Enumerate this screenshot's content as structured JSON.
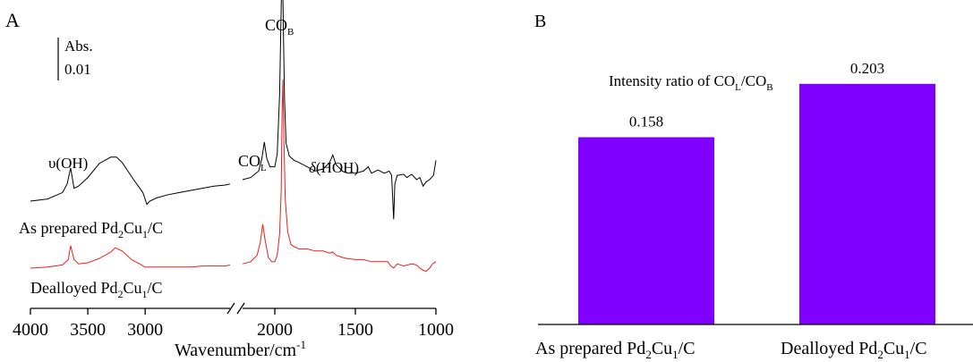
{
  "panelA": {
    "panel_label": "A",
    "scale_bar": {
      "label_line1": "Abs.",
      "label_line2": "0.01"
    },
    "xlabel_main": "Wavenumber/cm",
    "xlabel_sup": "-1",
    "annotations": {
      "co_b_main": "CO",
      "co_b_sub": "B",
      "co_l_main": "CO",
      "co_l_sub": "L",
      "v_oh": "υ(OH)",
      "delta_sym": "δ",
      "delta_rest": "(HOH)"
    },
    "trace_labels": {
      "as_prepared": {
        "a": "As prepared Pd",
        "s1": "2",
        "b": "Cu",
        "s2": "1",
        "c": "/C"
      },
      "dealloyed": {
        "a": "Dealloyed Pd",
        "s1": "2",
        "b": "Cu",
        "s2": "1",
        "c": "/C"
      }
    },
    "colors": {
      "as_prepared": "#000000",
      "dealloyed": "#e8201a"
    }
  },
  "panelB": {
    "panel_label": "B",
    "title": {
      "a": "Intensity ratio of CO",
      "s1": "L",
      "b": "/CO",
      "s2": "B"
    },
    "bar_color": "#8000ff"
  },
  "chart_data": [
    {
      "type": "line",
      "xlabel": "Wavenumber/cm-1",
      "xlim": [
        4000,
        1000
      ],
      "axis_break": [
        2260,
        2200
      ],
      "x_ticks": [
        4000,
        3500,
        3000,
        2000,
        1500,
        1000
      ],
      "x_tick_labels": [
        "4000",
        "3500",
        "3000",
        "2000",
        "1500",
        "1000"
      ],
      "series": [
        {
          "name": "As prepared Pd2Cu1/C",
          "segments": [
            [
              [
                4000,
                0.0
              ],
              [
                3850,
                0.001
              ],
              [
                3720,
                0.004
              ],
              [
                3680,
                0.008
              ],
              [
                3650,
                0.0155
              ],
              [
                3620,
                0.006
              ],
              [
                3580,
                0.007
              ],
              [
                3500,
                0.011
              ],
              [
                3400,
                0.0175
              ],
              [
                3300,
                0.0205
              ],
              [
                3250,
                0.0205
              ],
              [
                3200,
                0.018
              ],
              [
                3100,
                0.01
              ],
              [
                3020,
                0.004
              ],
              [
                2985,
                -0.0015
              ],
              [
                2960,
                0.0
              ],
              [
                2900,
                0.0015
              ],
              [
                2800,
                0.003
              ],
              [
                2700,
                0.004
              ],
              [
                2600,
                0.005
              ],
              [
                2500,
                0.006
              ],
              [
                2400,
                0.007
              ],
              [
                2300,
                0.0075
              ],
              [
                2260,
                0.008
              ]
            ],
            [
              [
                2200,
                0.01
              ],
              [
                2150,
                0.011
              ],
              [
                2100,
                0.014
              ],
              [
                2080,
                0.02
              ],
              [
                2065,
                0.0275
              ],
              [
                2050,
                0.02
              ],
              [
                2030,
                0.016
              ],
              [
                2000,
                0.016
              ],
              [
                1985,
                0.022
              ],
              [
                1970,
                0.05
              ],
              [
                1960,
                0.092
              ],
              [
                1955,
                0.106
              ],
              [
                1950,
                0.096
              ],
              [
                1940,
                0.048
              ],
              [
                1930,
                0.027
              ],
              [
                1910,
                0.021
              ],
              [
                1880,
                0.019
              ],
              [
                1850,
                0.018
              ],
              [
                1800,
                0.016
              ],
              [
                1750,
                0.014
              ],
              [
                1700,
                0.015
              ],
              [
                1660,
                0.018
              ],
              [
                1640,
                0.0215
              ],
              [
                1620,
                0.017
              ],
              [
                1580,
                0.014
              ],
              [
                1550,
                0.013
              ],
              [
                1500,
                0.013
              ],
              [
                1450,
                0.014
              ],
              [
                1420,
                0.016
              ],
              [
                1400,
                0.013
              ],
              [
                1360,
                0.0145
              ],
              [
                1320,
                0.013
              ],
              [
                1290,
                0.014
              ],
              [
                1275,
                0.012
              ],
              [
                1262,
                -0.0085
              ],
              [
                1255,
                0.008
              ],
              [
                1240,
                0.012
              ],
              [
                1200,
                0.0125
              ],
              [
                1180,
                0.011
              ],
              [
                1150,
                0.0125
              ],
              [
                1120,
                0.01
              ],
              [
                1100,
                0.011
              ],
              [
                1080,
                0.007
              ],
              [
                1060,
                0.009
              ],
              [
                1040,
                0.01
              ],
              [
                1015,
                0.012
              ],
              [
                1000,
                0.019
              ]
            ]
          ]
        },
        {
          "name": "Dealloyed Pd2Cu1/C",
          "segments": [
            [
              [
                4000,
                0.0
              ],
              [
                3850,
                0.0005
              ],
              [
                3720,
                0.0015
              ],
              [
                3670,
                0.004
              ],
              [
                3650,
                0.0105
              ],
              [
                3620,
                0.004
              ],
              [
                3580,
                0.002
              ],
              [
                3500,
                0.0025
              ],
              [
                3400,
                0.0045
              ],
              [
                3300,
                0.0075
              ],
              [
                3260,
                0.0095
              ],
              [
                3200,
                0.008
              ],
              [
                3120,
                0.004
              ],
              [
                3050,
                0.002
              ],
              [
                3000,
                0.0005
              ],
              [
                2900,
                0.0005
              ],
              [
                2800,
                0.0005
              ],
              [
                2700,
                0.0005
              ],
              [
                2600,
                0.0005
              ],
              [
                2500,
                0.001
              ],
              [
                2400,
                0.001
              ],
              [
                2300,
                0.001
              ],
              [
                2260,
                0.0015
              ]
            ],
            [
              [
                2200,
                0.002
              ],
              [
                2150,
                0.003
              ],
              [
                2110,
                0.006
              ],
              [
                2090,
                0.012
              ],
              [
                2075,
                0.0205
              ],
              [
                2060,
                0.013
              ],
              [
                2040,
                0.005
              ],
              [
                2020,
                0.003
              ],
              [
                2000,
                0.003
              ],
              [
                1985,
                0.006
              ],
              [
                1970,
                0.016
              ],
              [
                1960,
                0.037
              ],
              [
                1955,
                0.072
              ],
              [
                1950,
                0.088
              ],
              [
                1945,
                0.065
              ],
              [
                1935,
                0.032
              ],
              [
                1920,
                0.017
              ],
              [
                1900,
                0.011
              ],
              [
                1880,
                0.01
              ],
              [
                1850,
                0.009
              ],
              [
                1800,
                0.009
              ],
              [
                1750,
                0.008
              ],
              [
                1700,
                0.008
              ],
              [
                1660,
                0.007
              ],
              [
                1640,
                0.0075
              ],
              [
                1620,
                0.006
              ],
              [
                1580,
                0.005
              ],
              [
                1550,
                0.0045
              ],
              [
                1500,
                0.004
              ],
              [
                1450,
                0.004
              ],
              [
                1400,
                0.003
              ],
              [
                1350,
                0.003
              ],
              [
                1300,
                0.003
              ],
              [
                1280,
                0.001
              ],
              [
                1262,
                0.0
              ],
              [
                1240,
                0.002
              ],
              [
                1200,
                0.001
              ],
              [
                1150,
                0.002
              ],
              [
                1120,
                0.0015
              ],
              [
                1100,
                0.0
              ],
              [
                1080,
                -0.001
              ],
              [
                1060,
                -0.0015
              ],
              [
                1040,
                0.0
              ],
              [
                1020,
                0.002
              ],
              [
                1000,
                0.003
              ]
            ]
          ]
        }
      ],
      "grid": false
    },
    {
      "type": "bar",
      "categories": [
        "As prepared Pd2Cu1/C",
        "Dealloyed Pd2Cu1/C"
      ],
      "values": [
        0.158,
        0.203
      ],
      "value_labels": [
        "0.158",
        "0.203"
      ],
      "title": "Intensity ratio of COL/COB",
      "ylim": [
        0,
        0.25
      ],
      "grid": false
    }
  ]
}
